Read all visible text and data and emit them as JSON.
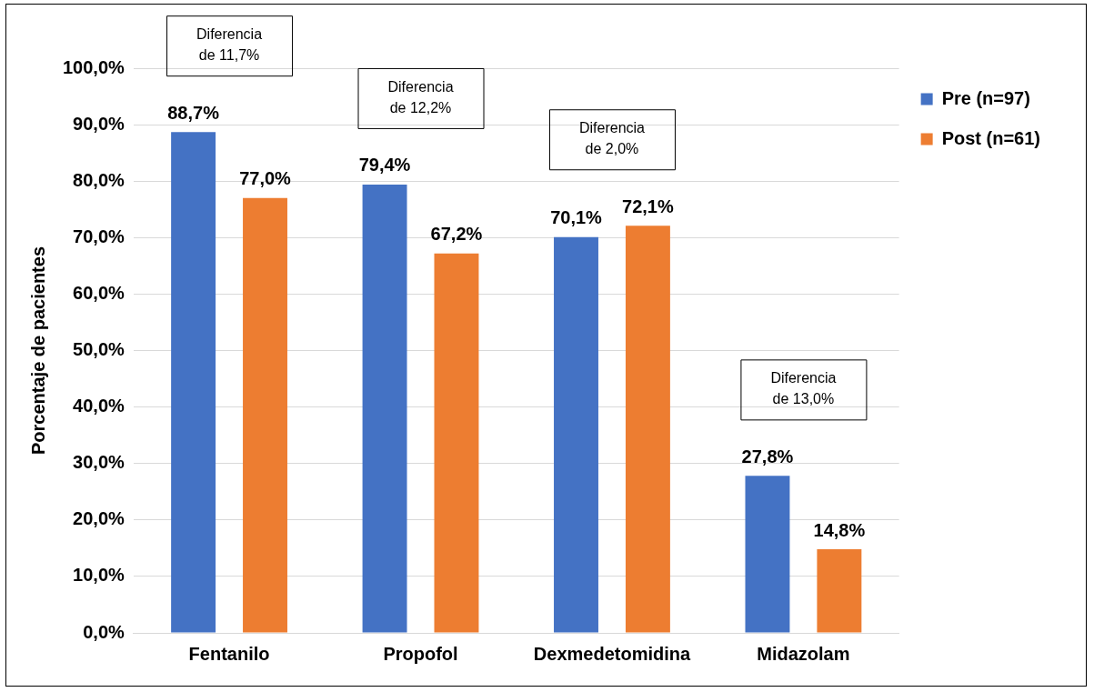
{
  "chart_data": {
    "type": "bar",
    "ylabel": "Porcentaje de pacientes",
    "categories": [
      "Fentanilo",
      "Propofol",
      "Dexmedetomidina",
      "Midazolam"
    ],
    "series": [
      {
        "name": "Pre (n=97)",
        "color": "#4472c4",
        "values": [
          88.7,
          79.4,
          70.1,
          27.8
        ]
      },
      {
        "name": "Post (n=61)",
        "color": "#ed7d31",
        "values": [
          77.0,
          67.2,
          72.1,
          14.8
        ]
      }
    ],
    "ylim": [
      0,
      100
    ],
    "yticks": [
      {
        "value": 0,
        "label": "0,0%"
      },
      {
        "value": 10,
        "label": "10,0%"
      },
      {
        "value": 20,
        "label": "20,0%"
      },
      {
        "value": 30,
        "label": "30,0%"
      },
      {
        "value": 40,
        "label": "40,0%"
      },
      {
        "value": 50,
        "label": "50,0%"
      },
      {
        "value": 60,
        "label": "60,0%"
      },
      {
        "value": 70,
        "label": "70,0%"
      },
      {
        "value": 80,
        "label": "80,0%"
      },
      {
        "value": 90,
        "label": "90,0%"
      },
      {
        "value": 100,
        "label": "100,0%"
      }
    ],
    "value_labels": [
      [
        "88,7%",
        "79,4%",
        "70,1%",
        "27,8%"
      ],
      [
        "77,0%",
        "67,2%",
        "72,1%",
        "14,8%"
      ]
    ],
    "annotations": [
      "Diferencia de 11,7%",
      "Diferencia de 12,2%",
      "Diferencia de 2,0%",
      "Diferencia de 13,0%"
    ],
    "grid": "y",
    "legend": "top right"
  }
}
